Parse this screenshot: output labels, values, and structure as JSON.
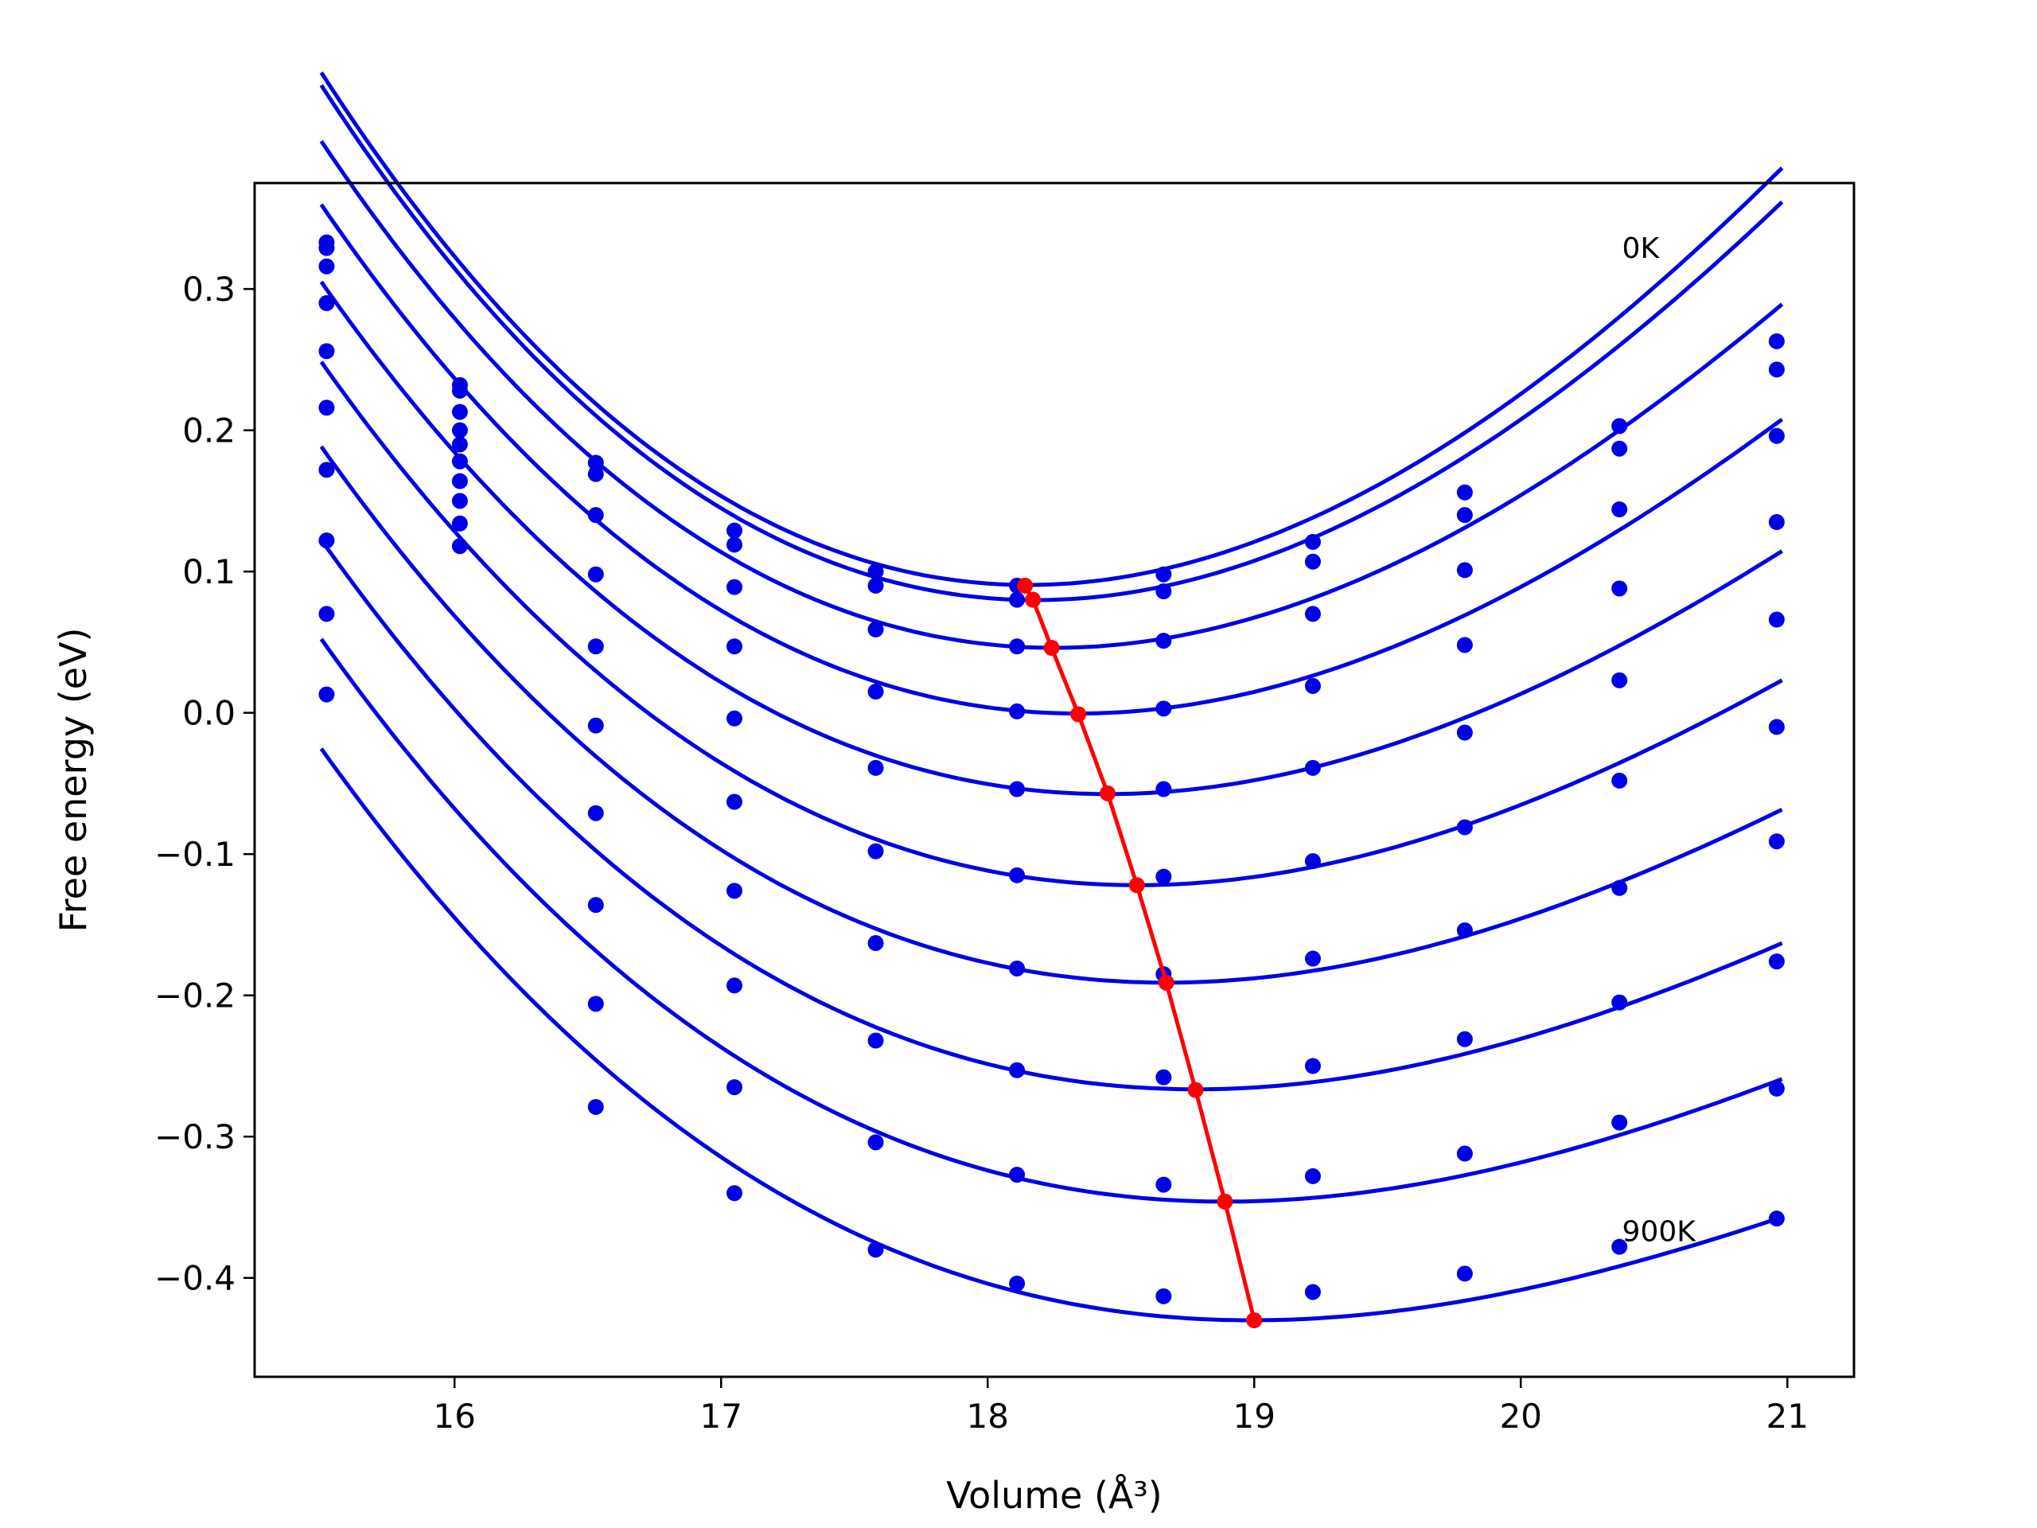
{
  "chart_data": {
    "type": "line",
    "title": "",
    "xlabel": "Volume (Å³)",
    "ylabel": "Free energy (eV)",
    "xlim": [
      15.25,
      21.25
    ],
    "ylim": [
      -0.47,
      0.375
    ],
    "xticks": [
      16,
      17,
      18,
      19,
      20,
      21
    ],
    "xtick_labels": [
      "16",
      "17",
      "18",
      "19",
      "20",
      "21"
    ],
    "yticks": [
      -0.4,
      -0.3,
      -0.2,
      -0.1,
      0.0,
      0.1,
      0.2,
      0.3
    ],
    "ytick_labels": [
      "−0.4",
      "−0.3",
      "−0.2",
      "−0.1",
      "0.0",
      "0.1",
      "0.2",
      "0.3"
    ],
    "grid": false,
    "legend": "none",
    "annotations": [
      {
        "text": "0K",
        "x": 20.38,
        "y": 0.322
      },
      {
        "text": "900K",
        "x": 20.38,
        "y": -0.374
      }
    ],
    "colors": {
      "fit": "#0000e6",
      "points": "#0000e6",
      "minima": "#ff0000"
    },
    "x_points": [
      15.52,
      16.02,
      16.53,
      17.05,
      17.58,
      18.11,
      18.66,
      19.22,
      19.79,
      20.37,
      20.96
    ],
    "series": [
      {
        "y": [
          0.333,
          0.232,
          0.177,
          0.129,
          0.1,
          0.09,
          0.098,
          0.121,
          0.156,
          0.203,
          0.263
        ],
        "fit": {
          "V0": 18.15,
          "E0": 0.0905,
          "a": 0.0445,
          "b": -0.0027
        }
      },
      {
        "y": [
          0.329,
          0.228,
          0.169,
          0.119,
          0.09,
          0.08,
          0.086,
          0.107,
          0.14,
          0.187,
          0.243
        ],
        "fit": {
          "V0": 18.18,
          "E0": 0.0798,
          "a": 0.0435,
          "b": -0.0027
        }
      },
      {
        "y": [
          0.316,
          0.213,
          0.14,
          0.089,
          0.059,
          0.047,
          0.051,
          0.07,
          0.101,
          0.144,
          0.196
        ],
        "fit": {
          "V0": 18.25,
          "E0": 0.046,
          "a": 0.04,
          "b": -0.0027
        }
      },
      {
        "y": [
          0.29,
          0.2,
          0.098,
          0.047,
          0.015,
          0.001,
          0.003,
          0.019,
          0.048,
          0.088,
          0.135
        ],
        "fit": {
          "V0": 18.34,
          "E0": -0.0005,
          "a": 0.037,
          "b": -0.0027
        }
      },
      {
        "y": [
          0.256,
          0.19,
          0.047,
          -0.004,
          -0.039,
          -0.054,
          -0.054,
          -0.039,
          -0.014,
          0.023,
          0.066
        ],
        "fit": {
          "V0": 18.45,
          "E0": -0.0575,
          "a": 0.0337,
          "b": -0.0027
        }
      },
      {
        "y": [
          0.216,
          0.178,
          -0.009,
          -0.063,
          -0.098,
          -0.115,
          -0.116,
          -0.105,
          -0.081,
          -0.048,
          -0.01
        ],
        "fit": {
          "V0": 18.56,
          "E0": -0.122,
          "a": 0.0313,
          "b": -0.0027
        }
      },
      {
        "y": [
          0.172,
          0.164,
          -0.071,
          -0.126,
          -0.163,
          -0.181,
          -0.185,
          -0.174,
          -0.154,
          -0.124,
          -0.091
        ],
        "fit": {
          "V0": 18.67,
          "E0": -0.191,
          "a": 0.0292,
          "b": -0.0027
        }
      },
      {
        "y": [
          0.122,
          0.15,
          -0.136,
          -0.193,
          -0.232,
          -0.253,
          -0.258,
          -0.25,
          -0.231,
          -0.205,
          -0.176
        ],
        "fit": {
          "V0": 18.78,
          "E0": -0.2665,
          "a": 0.0273,
          "b": -0.0027
        }
      },
      {
        "y": [
          0.07,
          0.134,
          -0.206,
          -0.265,
          -0.304,
          -0.327,
          -0.334,
          -0.328,
          -0.312,
          -0.29,
          -0.266
        ],
        "fit": {
          "V0": 18.89,
          "E0": -0.346,
          "a": 0.0255,
          "b": -0.0027
        }
      },
      {
        "y": [
          0.013,
          0.118,
          -0.279,
          -0.34,
          -0.38,
          -0.404,
          -0.413,
          -0.41,
          -0.397,
          -0.378,
          -0.358
        ],
        "fit": {
          "V0": 18.99,
          "E0": -0.43,
          "a": 0.0238,
          "b": -0.0027
        }
      }
    ],
    "minima": {
      "x": [
        18.14,
        18.17,
        18.24,
        18.34,
        18.45,
        18.56,
        18.67,
        18.78,
        18.89,
        19.0
      ],
      "y": [
        0.09,
        0.08,
        0.046,
        -0.001,
        -0.057,
        -0.122,
        -0.191,
        -0.267,
        -0.346,
        -0.43
      ]
    }
  }
}
